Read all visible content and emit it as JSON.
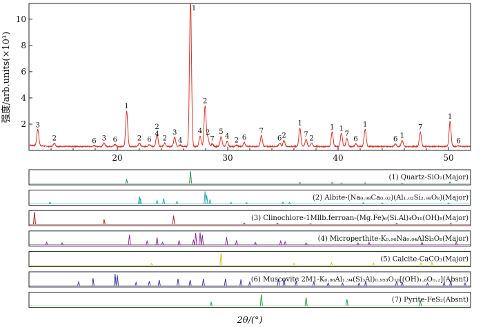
{
  "chart_data": [
    {
      "type": "line",
      "ylabel": "强度/arb.units(×10³)",
      "xlabel": "2θ/(°)",
      "xlim": [
        12,
        52
      ],
      "ylim": [
        0,
        11.2
      ],
      "x_ticks": [
        20,
        30,
        40,
        50
      ],
      "y_ticks": [
        2,
        4,
        6,
        8,
        10
      ],
      "grid": false,
      "series_color": "#d9342b",
      "background_level": 0.3,
      "peaks": [
        {
          "x": 12.8,
          "y": 1.55,
          "label": "3"
        },
        {
          "x": 14.3,
          "y": 0.55,
          "label": "2"
        },
        {
          "x": 17.9,
          "y": 0.35,
          "label": "6"
        },
        {
          "x": 18.8,
          "y": 0.55,
          "label": "3"
        },
        {
          "x": 19.8,
          "y": 0.45,
          "label": "6"
        },
        {
          "x": 20.85,
          "y": 3.0,
          "label": "1"
        },
        {
          "x": 22.0,
          "y": 0.55,
          "label": "2"
        },
        {
          "x": 22.9,
          "y": 0.45,
          "label": "6"
        },
        {
          "x": 23.6,
          "y": 0.9,
          "label": "4"
        },
        {
          "x": 23.6,
          "y": 0.6,
          "label": "2"
        },
        {
          "x": 24.3,
          "y": 0.55,
          "label": "2"
        },
        {
          "x": 25.2,
          "y": 1.0,
          "label": "3"
        },
        {
          "x": 25.7,
          "y": 0.4,
          "label": "4"
        },
        {
          "x": 26.63,
          "y": 11.5,
          "label": "1"
        },
        {
          "x": 27.5,
          "y": 1.1,
          "label": "4"
        },
        {
          "x": 27.95,
          "y": 3.4,
          "label": "2"
        },
        {
          "x": 28.2,
          "y": 1.0,
          "label": "2"
        },
        {
          "x": 28.6,
          "y": 0.5,
          "label": "7"
        },
        {
          "x": 29.4,
          "y": 1.05,
          "label": "5"
        },
        {
          "x": 29.95,
          "y": 0.7,
          "label": "4"
        },
        {
          "x": 30.8,
          "y": 0.4,
          "label": "2"
        },
        {
          "x": 31.5,
          "y": 0.6,
          "label": "6"
        },
        {
          "x": 33.05,
          "y": 1.1,
          "label": "7"
        },
        {
          "x": 34.7,
          "y": 0.55,
          "label": "6"
        },
        {
          "x": 35.1,
          "y": 0.75,
          "label": "2"
        },
        {
          "x": 36.54,
          "y": 1.7,
          "label": "1"
        },
        {
          "x": 37.1,
          "y": 0.85,
          "label": "7"
        },
        {
          "x": 37.6,
          "y": 0.55,
          "label": "2"
        },
        {
          "x": 39.46,
          "y": 1.4,
          "label": "1"
        },
        {
          "x": 40.3,
          "y": 1.3,
          "label": "1"
        },
        {
          "x": 40.8,
          "y": 0.9,
          "label": "7"
        },
        {
          "x": 41.6,
          "y": 0.5,
          "label": "6"
        },
        {
          "x": 42.45,
          "y": 1.6,
          "label": "1"
        },
        {
          "x": 45.2,
          "y": 0.5,
          "label": "6"
        },
        {
          "x": 45.8,
          "y": 0.75,
          "label": "1"
        },
        {
          "x": 47.45,
          "y": 1.4,
          "label": "7"
        },
        {
          "x": 50.14,
          "y": 2.2,
          "label": "1"
        },
        {
          "x": 50.9,
          "y": 0.35,
          "label": "6"
        }
      ]
    },
    {
      "type": "line",
      "panels": [
        {
          "label": "(1) Quartz-SiO₂(Major)",
          "color": "#2e8b57",
          "sticks": [
            [
              20.85,
              0.3
            ],
            [
              26.63,
              1.0
            ],
            [
              36.54,
              0.08
            ],
            [
              39.46,
              0.08
            ],
            [
              40.3,
              0.05
            ],
            [
              42.45,
              0.06
            ],
            [
              45.8,
              0.04
            ],
            [
              50.14,
              0.12
            ]
          ]
        },
        {
          "label": "(2) Albite-(Na₀.₉₈Ca₀.₀₂)(Al₁.₀₂Si₂.₉₈O₈)(Major)",
          "color": "#2aa7b8",
          "sticks": [
            [
              13.9,
              0.15
            ],
            [
              22.0,
              0.6
            ],
            [
              22.1,
              0.45
            ],
            [
              23.6,
              0.3
            ],
            [
              24.2,
              0.45
            ],
            [
              25.4,
              0.2
            ],
            [
              27.95,
              1.0
            ],
            [
              28.1,
              0.7
            ],
            [
              28.4,
              0.35
            ],
            [
              30.3,
              0.12
            ],
            [
              31.7,
              0.1
            ],
            [
              35.0,
              0.15
            ],
            [
              35.6,
              0.12
            ],
            [
              42.3,
              0.1
            ],
            [
              44.0,
              0.08
            ],
            [
              50.0,
              0.08
            ]
          ]
        },
        {
          "label": "(3) Clinochlore-1Mllb.ferroan-(Mg.Fe)₆(Si.Al)₄O₁₀(OH)₈(Major)",
          "color": "#b22222",
          "sticks": [
            [
              12.5,
              1.0
            ],
            [
              18.8,
              0.4
            ],
            [
              25.1,
              0.7
            ],
            [
              31.5,
              0.1
            ],
            [
              34.5,
              0.1
            ],
            [
              37.5,
              0.05
            ],
            [
              45.3,
              0.08
            ],
            [
              50.2,
              0.08
            ]
          ]
        },
        {
          "label": "(4) Microperthite-K₀.₉₆Na₀.₀₄AlSi₃O₈(Major)",
          "color": "#8b2f97",
          "sticks": [
            [
              13.6,
              0.2
            ],
            [
              15.0,
              0.15
            ],
            [
              21.1,
              0.8
            ],
            [
              22.7,
              0.3
            ],
            [
              23.6,
              0.6
            ],
            [
              24.1,
              0.2
            ],
            [
              25.6,
              0.35
            ],
            [
              26.9,
              0.4
            ],
            [
              27.1,
              0.95
            ],
            [
              27.5,
              1.0
            ],
            [
              27.7,
              0.8
            ],
            [
              29.9,
              0.6
            ],
            [
              30.8,
              0.35
            ],
            [
              32.5,
              0.2
            ],
            [
              34.8,
              0.3
            ],
            [
              35.2,
              0.25
            ],
            [
              37.1,
              0.15
            ],
            [
              41.8,
              0.15
            ],
            [
              42.8,
              0.2
            ],
            [
              47.6,
              0.2
            ],
            [
              50.7,
              0.2
            ]
          ]
        },
        {
          "label": "(5) Calcite-CaCO₃(Major)",
          "color": "#c8c820",
          "sticks": [
            [
              23.1,
              0.12
            ],
            [
              29.4,
              1.0
            ],
            [
              36.0,
              0.14
            ],
            [
              39.4,
              0.2
            ],
            [
              43.2,
              0.16
            ],
            [
              47.5,
              0.18
            ],
            [
              48.5,
              0.2
            ]
          ]
        },
        {
          "label": "(6) Muscovite 2M1-K₀.₈₆Al₁.₉₄(Si₃Al)₀.₉₅₃O₁₀[(OH)₁.₈O₀.₂](Absnt)",
          "color": "#3b3a9a",
          "sticks": [
            [
              16.5,
              0.3
            ],
            [
              17.8,
              0.6
            ],
            [
              19.8,
              0.95
            ],
            [
              20.0,
              0.85
            ],
            [
              21.7,
              0.25
            ],
            [
              22.9,
              0.35
            ],
            [
              23.8,
              0.45
            ],
            [
              25.5,
              0.55
            ],
            [
              26.6,
              0.45
            ],
            [
              27.8,
              0.55
            ],
            [
              29.8,
              0.55
            ],
            [
              31.2,
              0.5
            ],
            [
              32.0,
              0.3
            ],
            [
              34.6,
              0.55
            ],
            [
              35.1,
              0.5
            ],
            [
              36.2,
              0.35
            ],
            [
              37.8,
              0.3
            ],
            [
              39.1,
              0.2
            ],
            [
              40.4,
              0.2
            ],
            [
              41.9,
              0.2
            ],
            [
              42.5,
              0.3
            ],
            [
              45.3,
              0.35
            ],
            [
              45.8,
              0.3
            ],
            [
              48.1,
              0.2
            ],
            [
              49.6,
              0.25
            ],
            [
              50.2,
              0.4
            ],
            [
              51.5,
              0.2
            ]
          ]
        },
        {
          "label": "(7) Pyrite-FeS₂(Absnt)",
          "color": "#2a9d3a",
          "sticks": [
            [
              28.5,
              0.3
            ],
            [
              33.05,
              0.95
            ],
            [
              37.1,
              0.7
            ],
            [
              40.8,
              0.55
            ],
            [
              47.45,
              0.45
            ]
          ]
        }
      ]
    }
  ]
}
